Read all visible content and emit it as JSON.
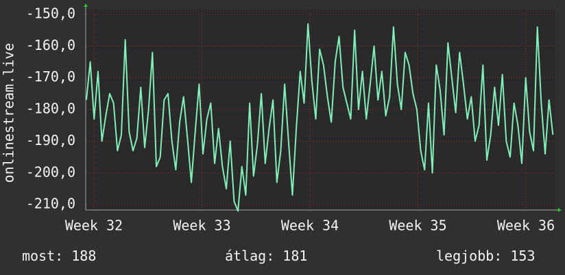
{
  "chart_data": {
    "type": "line",
    "ylabel": "onlinestream.live",
    "xlim": [
      31.924,
      36.273
    ],
    "xticks": [
      {
        "value": 32,
        "label": "Week 32"
      },
      {
        "value": 33,
        "label": "Week 33"
      },
      {
        "value": 34,
        "label": "Week 34"
      },
      {
        "value": 35,
        "label": "Week 35"
      },
      {
        "value": 36,
        "label": "Week 36"
      }
    ],
    "ylim": [
      -211.7,
      -148.5
    ],
    "yticks": [
      {
        "value": -150,
        "label": "-150,0"
      },
      {
        "value": -160,
        "label": "-160,0"
      },
      {
        "value": -170,
        "label": "-170,0"
      },
      {
        "value": -180,
        "label": "-180,0"
      },
      {
        "value": -190,
        "label": "-190,0"
      },
      {
        "value": -200,
        "label": "-200,0"
      },
      {
        "value": -210,
        "label": "-210,0"
      }
    ],
    "grid": true,
    "x": [
      31.93,
      31.966,
      32.002,
      32.038,
      32.074,
      32.11,
      32.146,
      32.182,
      32.218,
      32.254,
      32.29,
      32.326,
      32.362,
      32.398,
      32.434,
      32.47,
      32.506,
      32.542,
      32.578,
      32.614,
      32.65,
      32.686,
      32.722,
      32.758,
      32.794,
      32.83,
      32.866,
      32.902,
      32.938,
      32.974,
      33.01,
      33.046,
      33.082,
      33.118,
      33.154,
      33.19,
      33.226,
      33.262,
      33.298,
      33.334,
      33.37,
      33.406,
      33.442,
      33.478,
      33.514,
      33.55,
      33.586,
      33.622,
      33.658,
      33.694,
      33.73,
      33.766,
      33.802,
      33.838,
      33.874,
      33.91,
      33.946,
      33.982,
      34.018,
      34.054,
      34.09,
      34.126,
      34.162,
      34.198,
      34.234,
      34.27,
      34.306,
      34.342,
      34.378,
      34.414,
      34.45,
      34.486,
      34.522,
      34.558,
      34.594,
      34.63,
      34.666,
      34.702,
      34.738,
      34.774,
      34.81,
      34.846,
      34.882,
      34.918,
      34.954,
      34.99,
      35.026,
      35.062,
      35.098,
      35.134,
      35.17,
      35.206,
      35.242,
      35.278,
      35.314,
      35.35,
      35.386,
      35.422,
      35.458,
      35.494,
      35.53,
      35.566,
      35.602,
      35.638,
      35.674,
      35.71,
      35.746,
      35.782,
      35.818,
      35.854,
      35.89,
      35.926,
      35.962,
      35.998,
      36.034,
      36.07,
      36.106,
      36.142,
      36.178,
      36.214,
      36.25
    ],
    "series": [
      {
        "color": "#7ff0b8",
        "values": [
          -177,
          -165,
          -183,
          -168,
          -190,
          -182,
          -175,
          -178,
          -193,
          -188,
          -158,
          -187,
          -193,
          -189,
          -173,
          -192,
          -180,
          -162,
          -198,
          -195,
          -177,
          -175,
          -190,
          -199,
          -184,
          -176,
          -189,
          -203,
          -187,
          -172,
          -194,
          -183,
          -178,
          -197,
          -186,
          -198,
          -205,
          -190,
          -209,
          -212,
          -198,
          -207,
          -178,
          -201,
          -191,
          -175,
          -197,
          -186,
          -177,
          -203,
          -193,
          -172,
          -190,
          -207,
          -186,
          -168,
          -178,
          -153,
          -171,
          -183,
          -161,
          -166,
          -176,
          -184,
          -165,
          -157,
          -173,
          -178,
          -183,
          -155,
          -180,
          -168,
          -183,
          -172,
          -160,
          -177,
          -168,
          -182,
          -176,
          -154,
          -172,
          -180,
          -162,
          -166,
          -175,
          -180,
          -193,
          -199,
          -178,
          -200,
          -166,
          -174,
          -188,
          -159,
          -170,
          -181,
          -162,
          -172,
          -183,
          -176,
          -190,
          -185,
          -166,
          -196,
          -188,
          -173,
          -185,
          -169,
          -190,
          -195,
          -178,
          -185,
          -197,
          -170,
          -187,
          -193,
          -154,
          -178,
          -194,
          -177,
          -188
        ]
      }
    ]
  },
  "footer": [
    {
      "label": "most:",
      "value": 188
    },
    {
      "label": "átlag:",
      "value": 181
    },
    {
      "label": "legjobb:",
      "value": 153
    }
  ]
}
